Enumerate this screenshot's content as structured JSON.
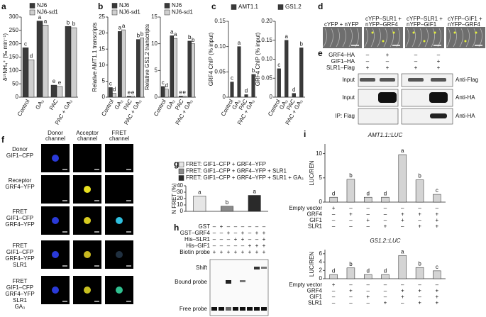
{
  "chart_data": [
    {
      "type": "bar",
      "ylabel": "δ¹⁵NH₄⁺ (‰ min⁻¹)",
      "categories": [
        "Control",
        "GA₃",
        "PAC",
        "PAC + GA₃"
      ],
      "series": [
        {
          "name": "NJ6",
          "color": "#3a3a3a",
          "values": [
            185,
            285,
            45,
            265
          ],
          "letters": [
            "c",
            "a",
            "e",
            "b"
          ]
        },
        {
          "name": "NJ6-sd1",
          "color": "#cfcfcf",
          "values": [
            140,
            270,
            40,
            260
          ],
          "letters": [
            "d",
            "a",
            "e",
            "b"
          ]
        }
      ],
      "ylim": [
        0,
        300
      ],
      "yticks": [
        0,
        50,
        100,
        150,
        200,
        250,
        300
      ]
    },
    {
      "type": "bar",
      "ylabel": "Relative AMT1.1 transcripts",
      "categories": [
        "Control",
        "GA₃",
        "PAC",
        "PAC + GA₃"
      ],
      "series": [
        {
          "name": "NJ6",
          "color": "#3a3a3a",
          "values": [
            3,
            20.5,
            0.3,
            18
          ],
          "letters": [
            "c",
            "a",
            "e",
            "b"
          ]
        },
        {
          "name": "NJ6-sd1",
          "color": "#cfcfcf",
          "values": [
            1.2,
            21,
            0.3,
            18.5
          ],
          "letters": [
            "d",
            "a",
            "e",
            "b"
          ]
        }
      ],
      "ylim": [
        0,
        25
      ],
      "yticks": [
        0,
        5,
        10,
        15,
        20,
        25
      ]
    },
    {
      "type": "bar",
      "ylabel": "Relative GS1.2 transcripts",
      "categories": [
        "Control",
        "GA₃",
        "PAC",
        "PAC + GA₃"
      ],
      "series": [
        {
          "name": "NJ6",
          "color": "#3a3a3a",
          "values": [
            2,
            11.5,
            0.2,
            10.5
          ],
          "letters": [
            "c",
            "a",
            "e",
            "b"
          ]
        },
        {
          "name": "NJ6-sd1",
          "color": "#cfcfcf",
          "values": [
            1.5,
            11,
            0.2,
            10
          ],
          "letters": [
            "d",
            "a",
            "e",
            "b"
          ]
        }
      ],
      "ylim": [
        0,
        15
      ],
      "yticks": [
        0,
        5,
        10,
        15
      ]
    },
    {
      "type": "bar",
      "ylabel": "GRF4 ChIP (% input)",
      "categories": [
        "Control",
        "GA₃",
        "PAC",
        "PAC + GA₃"
      ],
      "series": [
        {
          "name": "AMT1.1",
          "color": "#3a3a3a",
          "values": [
            0.03,
            0.1,
            0.005,
            0.045
          ],
          "letters": [
            "c",
            "a",
            "d",
            "b"
          ]
        }
      ],
      "ylim": [
        0,
        0.15
      ],
      "yticks": [
        0,
        0.05,
        {
          "value": 0.1,
          "label": "0.10"
        },
        0.15
      ]
    },
    {
      "type": "bar",
      "ylabel": "GRF4 ChIP (% input)",
      "categories": [
        "Control",
        "GA₃",
        "PAC",
        "PAC + GA₃"
      ],
      "series": [
        {
          "name": "GS1.2",
          "color": "#3a3a3a",
          "values": [
            0.075,
            0.15,
            0.01,
            0.13
          ],
          "letters": [
            "c",
            "a",
            "d",
            "b"
          ]
        }
      ],
      "ylim": [
        0,
        0.2
      ],
      "yticks": [
        0,
        0.05,
        {
          "value": 0.1,
          "label": "0.10"
        },
        0.15,
        {
          "value": 0.2,
          "label": "0.20"
        }
      ]
    },
    {
      "type": "bar",
      "ylabel": "N FRET (%)",
      "categories": [
        null,
        null,
        null
      ],
      "series": [
        {
          "name": "FRET: GIF1–CFP + GRF4–YFP",
          "color": "#e6e6e6",
          "values": [
            24,
            null,
            null
          ],
          "letters": [
            "a",
            null,
            null
          ]
        },
        {
          "name": "FRET: GIF1–CFP + GRF4–YFP + SLR1",
          "color": "#8a8a8a",
          "values": [
            null,
            8,
            null
          ],
          "letters": [
            null,
            "b",
            null
          ]
        },
        {
          "name": "FRET: GIF1–CFP + GRF4–YFP + SLR1 + GA₃",
          "color": "#2a2a2a",
          "values": [
            null,
            null,
            25
          ],
          "letters": [
            null,
            null,
            "a"
          ]
        }
      ],
      "ylim": [
        0,
        40
      ],
      "yticks": [
        0,
        10,
        20,
        30,
        40
      ]
    },
    {
      "type": "bar",
      "title": "AMT1.1::LUC",
      "ylabel": "LUC/REN",
      "categories": [
        null,
        null,
        null,
        null,
        null,
        null,
        null
      ],
      "series": [
        {
          "color": "#d4d4d4",
          "values": [
            1,
            4.7,
            1,
            1,
            9.8,
            4.6,
            1.6
          ],
          "letters": [
            "d",
            "b",
            "d",
            "d",
            "a",
            "b",
            "c"
          ]
        }
      ],
      "ylim": [
        0,
        12
      ],
      "yticks": [
        0,
        5,
        10
      ],
      "treatments": [
        {
          "label": "Empty vector",
          "signs": [
            "+",
            "–",
            "–",
            "–",
            "–",
            "–",
            "–"
          ]
        },
        {
          "label": "GRF4",
          "signs": [
            "–",
            "+",
            "–",
            "–",
            "+",
            "+",
            "+"
          ]
        },
        {
          "label": "GIF1",
          "signs": [
            "–",
            "–",
            "+",
            "–",
            "+",
            "–",
            "+"
          ]
        },
        {
          "label": "SLR1",
          "signs": [
            "–",
            "–",
            "–",
            "+",
            "–",
            "+",
            "+"
          ]
        }
      ]
    },
    {
      "type": "bar",
      "title": "GS1.2::LUC",
      "ylabel": "LUC/REN",
      "categories": [
        null,
        null,
        null,
        null,
        null,
        null,
        null
      ],
      "series": [
        {
          "color": "#d4d4d4",
          "values": [
            1,
            2.6,
            1,
            1,
            5.6,
            2.7,
            1.9
          ],
          "letters": [
            "d",
            "b",
            "d",
            "d",
            "a",
            "b",
            "c"
          ]
        }
      ],
      "ylim": [
        0,
        7
      ],
      "yticks": [
        0,
        2,
        4,
        6
      ],
      "treatments": [
        {
          "label": "Empty vector",
          "signs": [
            "+",
            "–",
            "–",
            "–",
            "–",
            "–",
            "–"
          ]
        },
        {
          "label": "GRF4",
          "signs": [
            "–",
            "+",
            "–",
            "–",
            "+",
            "+",
            "+"
          ]
        },
        {
          "label": "GIF1",
          "signs": [
            "–",
            "–",
            "+",
            "–",
            "+",
            "–",
            "+"
          ]
        },
        {
          "label": "SLR1",
          "signs": [
            "–",
            "–",
            "–",
            "+",
            "–",
            "+",
            "+"
          ]
        }
      ]
    }
  ],
  "panels": {
    "labels": [
      "a",
      "b",
      "c",
      "d",
      "e",
      "f",
      "g",
      "h",
      "i"
    ],
    "d": {
      "images": [
        [
          "cYFP + nYFP"
        ],
        [
          "cYFP–SLR1 +",
          "nYFP–GRF4"
        ],
        [
          "cYFP–SLR1 +",
          "nYFP–GIF1"
        ],
        [
          "cYFP–GIF1 +",
          "nYFP–GRF4"
        ]
      ]
    },
    "e": {
      "treatments": [
        {
          "label": "GRF4–HA",
          "signs": [
            "–",
            "+",
            "–",
            "–"
          ]
        },
        {
          "label": "GIF1–HA",
          "signs": [
            "–",
            "–",
            "–",
            "+"
          ]
        },
        {
          "label": "SLR1–Flag",
          "signs": [
            "+",
            "+",
            "+",
            "+"
          ]
        }
      ],
      "rows": [
        {
          "left": "Input",
          "right": "Anti-Flag"
        },
        {
          "left": "Input",
          "right": "Anti-HA"
        },
        {
          "left": "IP: Flag",
          "right": "Anti-HA"
        }
      ]
    },
    "f": {
      "columns": [
        [
          "Donor",
          "channel"
        ],
        [
          "Acceptor",
          "channel"
        ],
        [
          "FRET",
          "channel"
        ]
      ],
      "rows": [
        [
          "Donor",
          "GIF1–CFP"
        ],
        [
          "Receptor",
          "GRF4–YFP"
        ],
        [
          "FRET",
          "GIF1–CFP",
          "GRF4–YFP"
        ],
        [
          "FRET",
          "GIF1–CFP",
          "GRF4–YFP",
          "SLR1"
        ],
        [
          "FRET",
          "GIF1–CFP",
          "GRF4–YFP",
          "SLR1",
          "GA₃"
        ]
      ]
    },
    "h": {
      "treatments": [
        {
          "label": "GST",
          "signs": [
            "–",
            "+",
            "–",
            "–",
            "–",
            "–",
            "–",
            "–"
          ]
        },
        {
          "label": "GST–GRF4",
          "signs": [
            "–",
            "–",
            "+",
            "–",
            "+",
            "–",
            "+",
            "+"
          ]
        },
        {
          "label": "His–SLR1",
          "signs": [
            "–",
            "–",
            "–",
            "+",
            "+",
            "–",
            "–",
            "+"
          ]
        },
        {
          "label": "His–GIF1",
          "signs": [
            "–",
            "–",
            "–",
            "–",
            "–",
            "+",
            "+",
            "+"
          ]
        },
        {
          "label": "Biotin probe",
          "signs": [
            "+",
            "+",
            "+",
            "+",
            "+",
            "+",
            "+",
            "+"
          ]
        }
      ],
      "bands": [
        "Shift",
        "Bound probe",
        "Free probe"
      ]
    }
  }
}
